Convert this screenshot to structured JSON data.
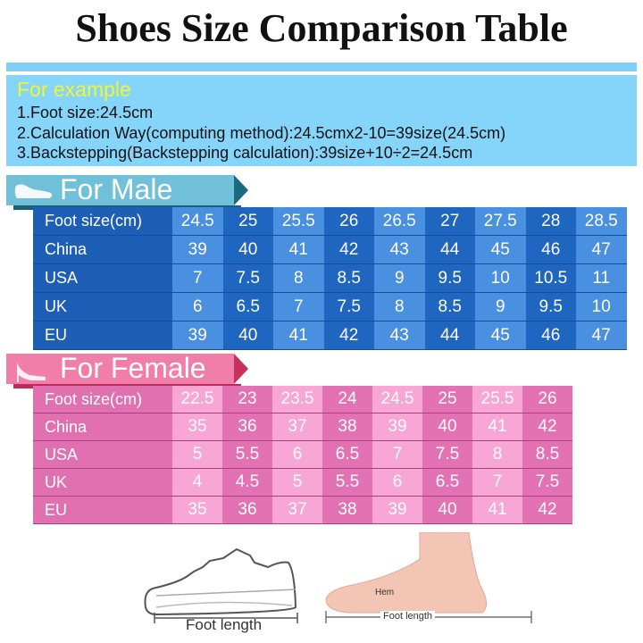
{
  "title": "Shoes Size Comparison Table",
  "example": {
    "heading": "For example",
    "lines": [
      "1.Foot size:24.5cm",
      "2.Calculation Way(computing method):24.5cmx2-10=39size(24.5cm)",
      "3.Backstepping(Backstepping calculation):39size+10÷2=24.5cm"
    ]
  },
  "colors": {
    "male_label": "#1d5fb6",
    "male_light": "#4a90e0",
    "male_dark": "#1f66c0",
    "female_label": "#e070b0",
    "female_light": "#f7a6d6",
    "female_dark": "#e272b4"
  },
  "male": {
    "heading": "For Male",
    "icon": "shoe-icon",
    "rows": [
      {
        "label": "Foot size(cm)",
        "values": [
          "24.5",
          "25",
          "25.5",
          "26",
          "26.5",
          "27",
          "27.5",
          "28",
          "28.5"
        ]
      },
      {
        "label": "China",
        "values": [
          "39",
          "40",
          "41",
          "42",
          "43",
          "44",
          "45",
          "46",
          "47"
        ]
      },
      {
        "label": "USA",
        "values": [
          "7",
          "7.5",
          "8",
          "8.5",
          "9",
          "9.5",
          "10",
          "10.5",
          "11"
        ]
      },
      {
        "label": "UK",
        "values": [
          "6",
          "6.5",
          "7",
          "7.5",
          "8",
          "8.5",
          "9",
          "9.5",
          "10"
        ]
      },
      {
        "label": "EU",
        "values": [
          "39",
          "40",
          "41",
          "42",
          "43",
          "44",
          "45",
          "46",
          "47"
        ]
      }
    ]
  },
  "female": {
    "heading": "For Female",
    "icon": "high-heel-icon",
    "rows": [
      {
        "label": "Foot size(cm)",
        "values": [
          "22.5",
          "23",
          "23.5",
          "24",
          "24.5",
          "25",
          "25.5",
          "26"
        ]
      },
      {
        "label": "China",
        "values": [
          "35",
          "36",
          "37",
          "38",
          "39",
          "40",
          "41",
          "42"
        ]
      },
      {
        "label": "USA",
        "values": [
          "5",
          "5.5",
          "6",
          "6.5",
          "7",
          "7.5",
          "8",
          "8.5"
        ]
      },
      {
        "label": "UK",
        "values": [
          "4",
          "4.5",
          "5",
          "5.5",
          "6",
          "6.5",
          "7",
          "7.5"
        ]
      },
      {
        "label": "EU",
        "values": [
          "35",
          "36",
          "37",
          "38",
          "39",
          "40",
          "41",
          "42"
        ]
      }
    ]
  },
  "illustrations": {
    "shoe_caption": "Foot length",
    "foot_caption": "Foot length",
    "foot_hem_label": "Hem"
  }
}
